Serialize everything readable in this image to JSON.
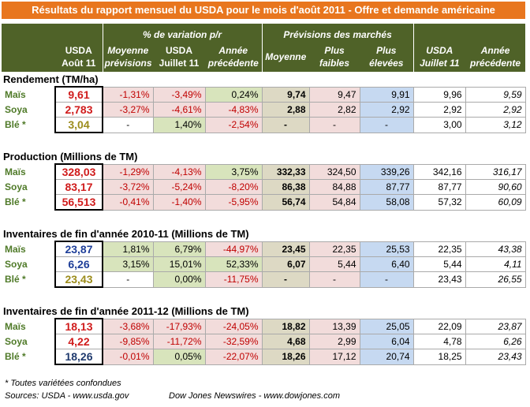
{
  "title": "Résultats du rapport mensuel du USDA pour le mois d'août 2011 - Offre et demande américaine",
  "header": {
    "group1": "% de variation p/r",
    "group2": "Prévisions des marchés",
    "columns": [
      "USDA\nAoût 11",
      "Moyenne\nprévisions",
      "USDA\nJuillet 11",
      "Année\nprécédente",
      "Moyenne",
      "Plus\nfaibles",
      "Plus\nélevées",
      "USDA\nJuillet 11",
      "Année\nprécédente"
    ]
  },
  "sections": [
    {
      "title": "Rendement (TM/ha)",
      "rows": [
        {
          "label": "Maïs",
          "color": "#d01c1c",
          "cells": [
            "9,61",
            "-1,31%",
            "-3,49%",
            "0,24%",
            "9,74",
            "9,47",
            "9,91",
            "9,96",
            "9,59"
          ]
        },
        {
          "label": "Soya",
          "color": "#d01c1c",
          "cells": [
            "2,783",
            "-3,27%",
            "-4,61%",
            "-4,83%",
            "2,88",
            "2,82",
            "2,92",
            "2,92",
            "2,92"
          ]
        },
        {
          "label": "Blé *",
          "color": "#9c8c1c",
          "cells": [
            "3,04",
            "-",
            "1,40%",
            "-2,54%",
            "-",
            "-",
            "-",
            "3,00",
            "3,12"
          ]
        }
      ]
    },
    {
      "title": "Production (Millions de TM)",
      "rows": [
        {
          "label": "Maïs",
          "color": "#d01c1c",
          "cells": [
            "328,03",
            "-1,29%",
            "-4,13%",
            "3,75%",
            "332,33",
            "324,50",
            "339,26",
            "342,16",
            "316,17"
          ]
        },
        {
          "label": "Soya",
          "color": "#d01c1c",
          "cells": [
            "83,17",
            "-3,72%",
            "-5,24%",
            "-8,20%",
            "86,38",
            "84,88",
            "87,77",
            "87,77",
            "90,60"
          ]
        },
        {
          "label": "Blé *",
          "color": "#d01c1c",
          "cells": [
            "56,513",
            "-0,41%",
            "-1,40%",
            "-5,95%",
            "56,74",
            "54,84",
            "58,08",
            "57,32",
            "60,09"
          ]
        }
      ]
    },
    {
      "title": "Inventaires de fin d'année 2010-11 (Millions de TM)",
      "rows": [
        {
          "label": "Maïs",
          "color": "#1f3f99",
          "cells": [
            "23,87",
            "1,81%",
            "6,79%",
            "-44,97%",
            "23,45",
            "22,35",
            "25,53",
            "22,35",
            "43,38"
          ]
        },
        {
          "label": "Soya",
          "color": "#1f3f99",
          "cells": [
            "6,26",
            "3,15%",
            "15,01%",
            "52,33%",
            "6,07",
            "5,44",
            "6,40",
            "5,44",
            "4,11"
          ]
        },
        {
          "label": "Blé *",
          "color": "#9c8c1c",
          "cells": [
            "23,43",
            "-",
            "0,00%",
            "-11,75%",
            "-",
            "-",
            "-",
            "23,43",
            "26,55"
          ]
        }
      ]
    },
    {
      "title": "Inventaires de fin d'année 2011-12 (Millions de TM)",
      "rows": [
        {
          "label": "Maïs",
          "color": "#d01c1c",
          "cells": [
            "18,13",
            "-3,68%",
            "-17,93%",
            "-24,05%",
            "18,82",
            "13,39",
            "25,05",
            "22,09",
            "23,87"
          ]
        },
        {
          "label": "Soya",
          "color": "#d01c1c",
          "cells": [
            "4,22",
            "-9,85%",
            "-11,72%",
            "-32,59%",
            "4,68",
            "2,99",
            "6,04",
            "4,78",
            "6,26"
          ]
        },
        {
          "label": "Blé *",
          "color": "#1f3a6e",
          "cells": [
            "18,26",
            "-0,01%",
            "0,05%",
            "-22,07%",
            "18,26",
            "17,12",
            "20,74",
            "18,25",
            "23,43"
          ]
        }
      ]
    }
  ],
  "footnotes": [
    "* Toutes variétées confondues",
    "Sources: USDA - www.usda.gov",
    "Dow Jones Newswires - www.dowjones.com"
  ]
}
